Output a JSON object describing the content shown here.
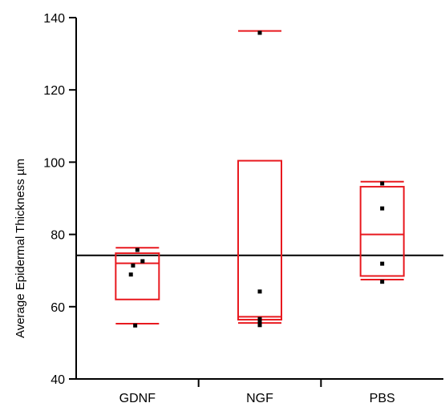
{
  "chart_data": {
    "type": "box",
    "title": "",
    "xlabel": "",
    "ylabel": "Average Epidermal Thickness µm",
    "ylim": [
      40,
      140
    ],
    "yticks": [
      40,
      60,
      80,
      100,
      120,
      140
    ],
    "categories": [
      "GDNF",
      "NGF",
      "PBS"
    ],
    "reference_line": 74.2,
    "box_color": "#e8191f",
    "point_color": "#000000",
    "axis_color": "#000000",
    "groups": [
      {
        "name": "GDNF",
        "whisker_low": 55.3,
        "q1": 62.0,
        "median": 72.0,
        "q3": 74.8,
        "whisker_high": 76.3,
        "points": [
          {
            "offset": 0.0,
            "y": 75.7
          },
          {
            "offset": 0.12,
            "y": 72.6
          },
          {
            "offset": -0.1,
            "y": 71.4
          },
          {
            "offset": -0.15,
            "y": 68.9
          },
          {
            "offset": -0.05,
            "y": 54.8
          }
        ]
      },
      {
        "name": "NGF",
        "whisker_low": 55.5,
        "q1": 56.4,
        "median": 57.2,
        "q3": 100.4,
        "whisker_high": 136.3,
        "points": [
          {
            "offset": 0.0,
            "y": 135.8
          },
          {
            "offset": 0.0,
            "y": 64.2
          },
          {
            "offset": 0.0,
            "y": 56.6
          },
          {
            "offset": 0.0,
            "y": 55.9
          },
          {
            "offset": 0.0,
            "y": 54.9
          }
        ]
      },
      {
        "name": "PBS",
        "whisker_low": 67.5,
        "q1": 68.5,
        "median": 80.0,
        "q3": 93.2,
        "whisker_high": 94.6,
        "points": [
          {
            "offset": 0.0,
            "y": 94.1
          },
          {
            "offset": 0.0,
            "y": 87.2
          },
          {
            "offset": 0.0,
            "y": 71.9
          },
          {
            "offset": 0.0,
            "y": 66.9
          }
        ]
      }
    ]
  }
}
